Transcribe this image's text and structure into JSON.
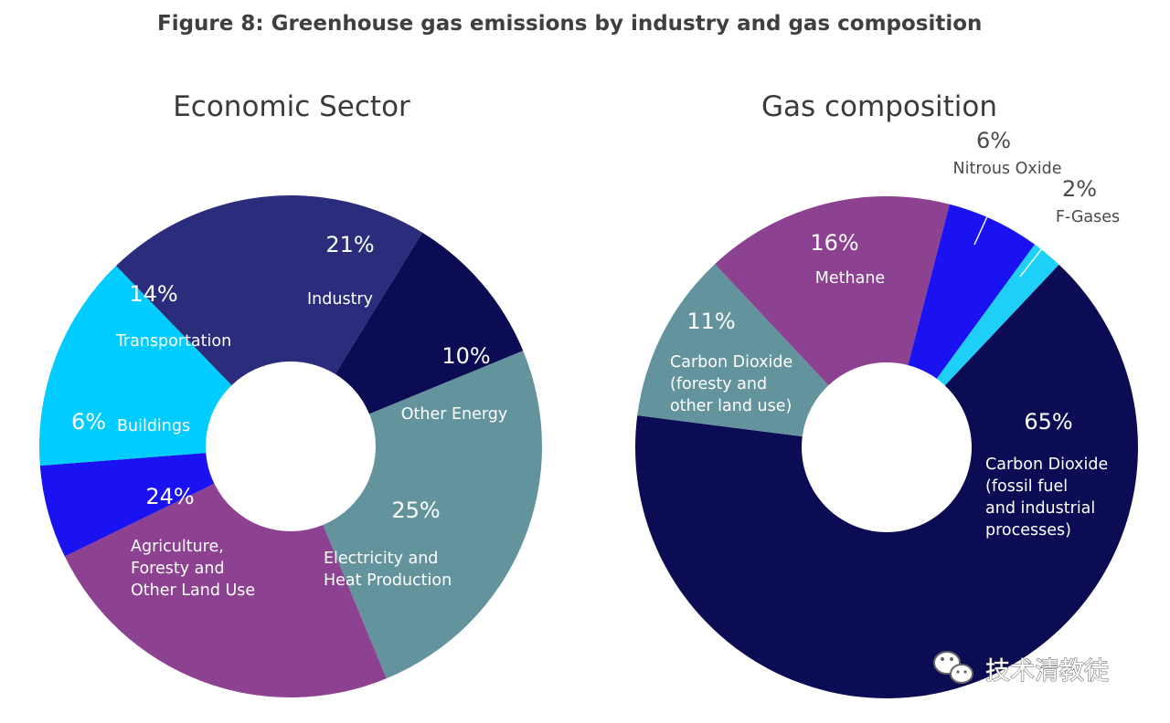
{
  "figure_title": "Figure 8: Greenhouse gas emissions by industry and gas composition",
  "watermark": {
    "text": "技术清教徒",
    "icon": "wechat-icon"
  },
  "chart_data": [
    {
      "type": "pie",
      "donut": true,
      "title": "Economic Sector",
      "slices": [
        {
          "label": [
            "Industry"
          ],
          "value": 21,
          "pct_text": "21%",
          "color": "#2b2d7c"
        },
        {
          "label": [
            "Other Energy"
          ],
          "value": 10,
          "pct_text": "10%",
          "color": "#0c0c55"
        },
        {
          "label": [
            "Electricity and",
            "Heat Production"
          ],
          "value": 25,
          "pct_text": "25%",
          "color": "#63949e"
        },
        {
          "label": [
            "Agriculture,",
            "Foresty and",
            "Other Land Use"
          ],
          "value": 24,
          "pct_text": "24%",
          "color": "#8c4290"
        },
        {
          "label": [
            "Buildings"
          ],
          "value": 6,
          "pct_text": "6%",
          "color": "#1a12f0"
        },
        {
          "label": [
            "Transportation"
          ],
          "value": 14,
          "pct_text": "14%",
          "color": "#00ccff"
        }
      ]
    },
    {
      "type": "pie",
      "donut": true,
      "title": "Gas composition",
      "slices": [
        {
          "label": [
            "Nitrous Oxide"
          ],
          "value": 6,
          "pct_text": "6%",
          "color": "#1a12f0"
        },
        {
          "label": [
            "F-Gases"
          ],
          "value": 2,
          "pct_text": "2%",
          "color": "#1ed0f8"
        },
        {
          "label": [
            "Carbon Dioxide",
            "(fossil fuel",
            "and industrial",
            "processes)"
          ],
          "value": 65,
          "pct_text": "65%",
          "color": "#0c0c55"
        },
        {
          "label": [
            "Carbon Dioxide",
            "(foresty and",
            "other land use)"
          ],
          "value": 11,
          "pct_text": "11%",
          "color": "#63949e"
        },
        {
          "label": [
            "Methane"
          ],
          "value": 16,
          "pct_text": "16%",
          "color": "#8c4290"
        }
      ]
    }
  ]
}
